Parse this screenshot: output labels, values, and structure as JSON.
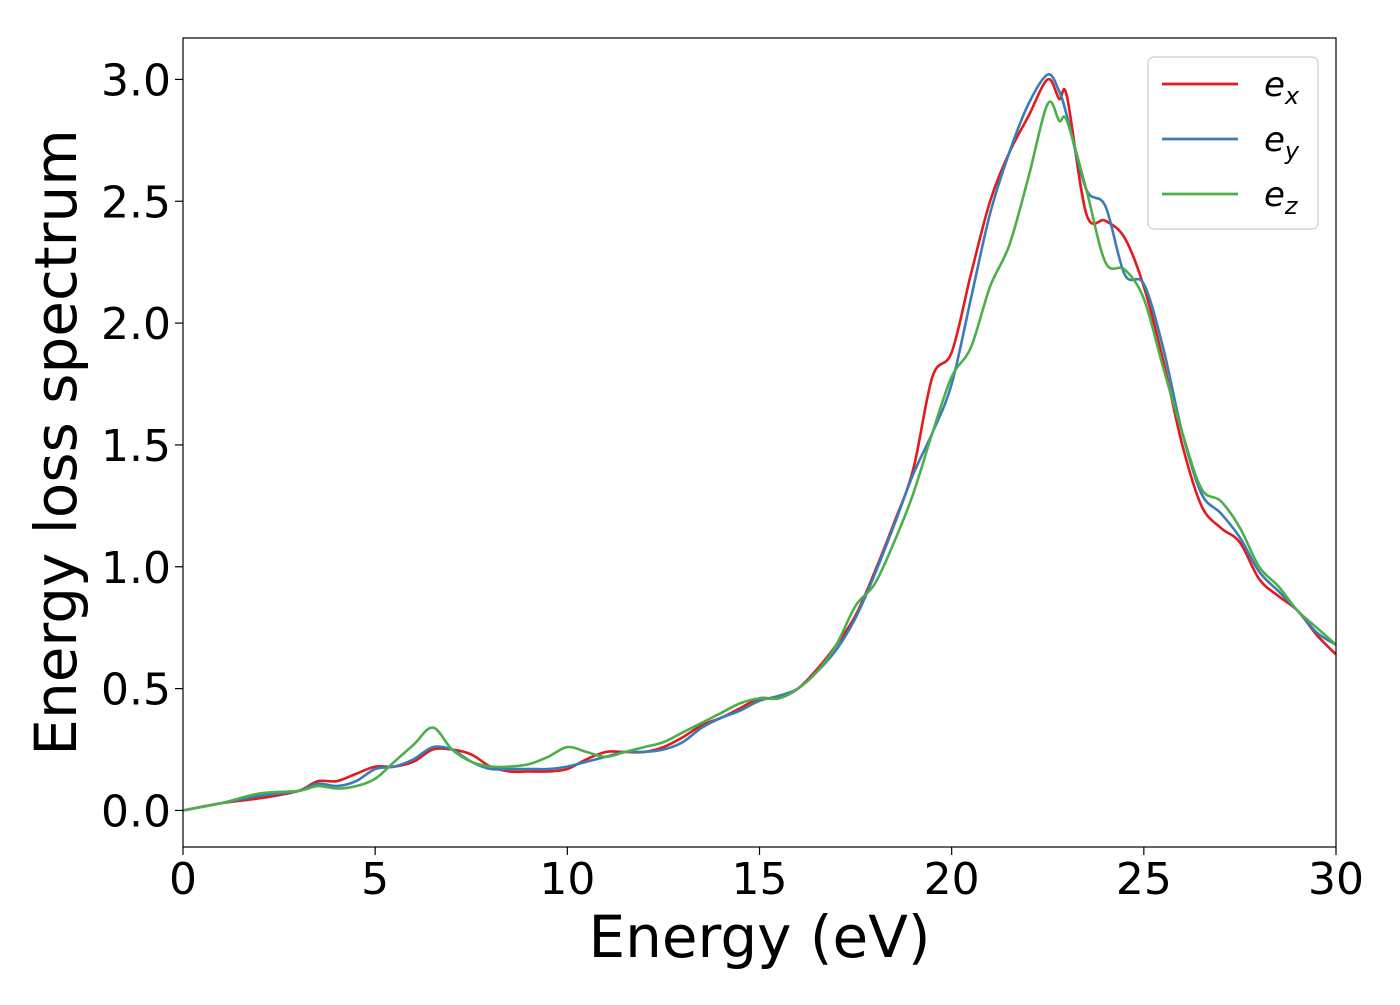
{
  "chart_data": {
    "type": "line",
    "title": "",
    "xlabel": "Energy (eV)",
    "ylabel": "Energy loss spectrum",
    "xlim": [
      0,
      30
    ],
    "ylim": [
      -0.15,
      3.17
    ],
    "xticks": [
      0,
      5,
      10,
      15,
      20,
      25,
      30
    ],
    "xtick_labels": [
      "0",
      "5",
      "10",
      "15",
      "20",
      "25",
      "30"
    ],
    "yticks": [
      0.0,
      0.5,
      1.0,
      1.5,
      2.0,
      2.5,
      3.0
    ],
    "ytick_labels": [
      "0.0",
      "0.5",
      "1.0",
      "1.5",
      "2.0",
      "2.5",
      "3.0"
    ],
    "grid": false,
    "legend_position": "top-right",
    "series": [
      {
        "name": "e_x",
        "label_base": "e",
        "label_sub": "x",
        "color": "#e41a1c",
        "x": [
          0,
          1,
          2,
          3,
          3.5,
          4,
          4.5,
          5,
          5.5,
          6,
          6.5,
          7,
          7.5,
          8,
          8.5,
          9,
          9.5,
          10,
          10.5,
          11,
          11.5,
          12,
          12.5,
          13,
          13.5,
          14,
          14.5,
          15,
          15.5,
          16,
          16.5,
          17,
          17.5,
          18,
          18.5,
          19,
          19.5,
          20,
          20.5,
          21,
          21.5,
          22,
          22.5,
          22.8,
          23,
          23.5,
          24,
          24.5,
          25,
          25.5,
          26,
          26.5,
          27,
          27.5,
          28,
          28.5,
          29,
          29.5,
          30
        ],
        "y": [
          0.0,
          0.03,
          0.05,
          0.08,
          0.12,
          0.12,
          0.15,
          0.18,
          0.18,
          0.2,
          0.25,
          0.25,
          0.23,
          0.18,
          0.16,
          0.16,
          0.16,
          0.17,
          0.21,
          0.24,
          0.24,
          0.24,
          0.26,
          0.3,
          0.35,
          0.38,
          0.42,
          0.46,
          0.46,
          0.5,
          0.58,
          0.68,
          0.8,
          0.98,
          1.18,
          1.4,
          1.78,
          1.88,
          2.2,
          2.5,
          2.7,
          2.85,
          3.0,
          2.92,
          2.93,
          2.45,
          2.42,
          2.35,
          2.15,
          1.85,
          1.5,
          1.25,
          1.16,
          1.1,
          0.95,
          0.88,
          0.82,
          0.72,
          0.64
        ]
      },
      {
        "name": "e_y",
        "label_base": "e",
        "label_sub": "y",
        "color": "#377eb8",
        "x": [
          0,
          1,
          2,
          3,
          3.5,
          4,
          4.5,
          5,
          5.5,
          6,
          6.5,
          7,
          7.5,
          8,
          8.5,
          9,
          9.5,
          10,
          10.5,
          11,
          11.5,
          12,
          12.5,
          13,
          13.5,
          14,
          14.5,
          15,
          15.5,
          16,
          16.5,
          17,
          17.5,
          18,
          18.5,
          19,
          19.5,
          20,
          20.5,
          21,
          21.5,
          22,
          22.5,
          22.8,
          23,
          23.5,
          24,
          24.5,
          25,
          25.5,
          26,
          26.5,
          27,
          27.5,
          28,
          28.5,
          29,
          29.5,
          30
        ],
        "y": [
          0.0,
          0.03,
          0.06,
          0.08,
          0.11,
          0.1,
          0.12,
          0.17,
          0.18,
          0.21,
          0.26,
          0.25,
          0.2,
          0.17,
          0.17,
          0.17,
          0.17,
          0.18,
          0.2,
          0.22,
          0.24,
          0.24,
          0.25,
          0.28,
          0.34,
          0.38,
          0.41,
          0.45,
          0.47,
          0.5,
          0.57,
          0.66,
          0.79,
          0.97,
          1.17,
          1.38,
          1.55,
          1.75,
          2.1,
          2.45,
          2.7,
          2.9,
          3.02,
          2.95,
          2.85,
          2.55,
          2.48,
          2.2,
          2.16,
          1.9,
          1.55,
          1.3,
          1.22,
          1.12,
          0.98,
          0.9,
          0.82,
          0.73,
          0.68
        ]
      },
      {
        "name": "e_z",
        "label_base": "e",
        "label_sub": "z",
        "color": "#4daf4a",
        "x": [
          0,
          1,
          2,
          3,
          3.5,
          4,
          4.5,
          5,
          5.5,
          6,
          6.5,
          7,
          7.5,
          8,
          8.5,
          9,
          9.5,
          10,
          10.5,
          11,
          11.5,
          12,
          12.5,
          13,
          13.5,
          14,
          14.5,
          15,
          15.5,
          16,
          16.5,
          17,
          17.5,
          18,
          18.5,
          19,
          19.5,
          20,
          20.5,
          21,
          21.5,
          22,
          22.5,
          22.8,
          23,
          23.5,
          24,
          24.5,
          25,
          25.5,
          26,
          26.5,
          27,
          27.5,
          28,
          28.5,
          29,
          29.5,
          30
        ],
        "y": [
          0.0,
          0.03,
          0.07,
          0.08,
          0.1,
          0.09,
          0.1,
          0.13,
          0.2,
          0.27,
          0.34,
          0.25,
          0.2,
          0.18,
          0.18,
          0.19,
          0.22,
          0.26,
          0.24,
          0.22,
          0.24,
          0.26,
          0.28,
          0.32,
          0.36,
          0.4,
          0.44,
          0.46,
          0.46,
          0.5,
          0.57,
          0.68,
          0.84,
          0.93,
          1.1,
          1.3,
          1.55,
          1.78,
          1.9,
          2.15,
          2.32,
          2.6,
          2.9,
          2.83,
          2.83,
          2.55,
          2.25,
          2.22,
          2.1,
          1.82,
          1.55,
          1.32,
          1.27,
          1.16,
          1.0,
          0.92,
          0.82,
          0.75,
          0.68
        ]
      }
    ]
  }
}
